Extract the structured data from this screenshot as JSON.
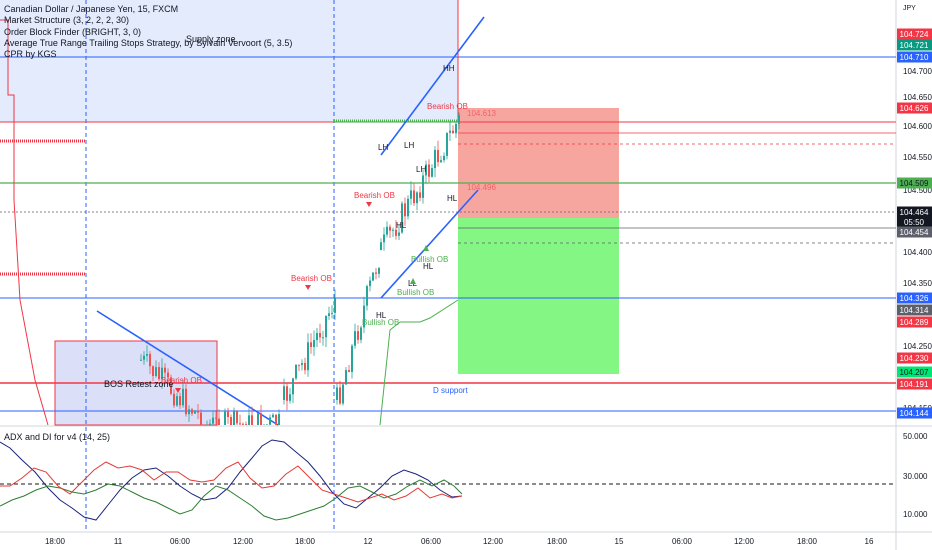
{
  "legend": {
    "symbol": "Canadian Dollar / Japanese Yen, 15, FXCM",
    "indicators": [
      "Market Structure (3, 2, 2, 2, 30)",
      "Order Block Finder (BRIGHT, 3, 0)",
      "Average True Range Trailing Stops Strategy, by Sylvain Vervoort (5, 3.5)",
      "CPR by KGS"
    ]
  },
  "currency": "JPY",
  "price_axis": {
    "ticks": [
      "104.700",
      "104.650",
      "104.600",
      "104.550",
      "104.500",
      "104.400",
      "104.350",
      "104.250",
      "104.150"
    ],
    "tags": [
      {
        "value": "104.724",
        "color": "#f23645",
        "text_color": "#ffffff",
        "kind": "fill"
      },
      {
        "value": "104.721",
        "color": "#089981",
        "text_color": "#ffffff",
        "kind": "fill"
      },
      {
        "value": "104.710",
        "color": "#2962ff",
        "text_color": "#ffffff",
        "kind": "fill"
      },
      {
        "value": "104.626",
        "color": "#f23645",
        "text_color": "#ffffff",
        "kind": "fill"
      },
      {
        "value": "104.509",
        "color": "#4caf50",
        "text_color": "#131722",
        "kind": "fill"
      },
      {
        "value": "104.464",
        "color": "#131722",
        "text_color": "#ffffff",
        "kind": "fill"
      },
      {
        "value": "05:50",
        "color": "#131722",
        "text_color": "#ffffff",
        "kind": "fill"
      },
      {
        "value": "104.454",
        "color": "#5d606b",
        "text_color": "#ffffff",
        "kind": "fill"
      },
      {
        "value": "104.326",
        "color": "#2962ff",
        "text_color": "#ffffff",
        "kind": "fill"
      },
      {
        "value": "104.314",
        "color": "#5d606b",
        "text_color": "#ffffff",
        "kind": "fill"
      },
      {
        "value": "104.289",
        "color": "#f23645",
        "text_color": "#ffffff",
        "kind": "fill"
      },
      {
        "value": "104.230",
        "color": "#f23645",
        "text_color": "#ffffff",
        "kind": "fill"
      },
      {
        "value": "104.207",
        "color": "#00e676",
        "text_color": "#131722",
        "kind": "fill"
      },
      {
        "value": "104.191",
        "color": "#f23645",
        "text_color": "#ffffff",
        "kind": "fill"
      },
      {
        "value": "104.144",
        "color": "#2962ff",
        "text_color": "#ffffff",
        "kind": "fill"
      }
    ]
  },
  "indicator_pane": {
    "title": "ADX and DI for v4 (14, 25)",
    "ticks": [
      "50.000",
      "30.000",
      "10.000"
    ],
    "series_colors": {
      "adx": "#1a237e",
      "di_plus": "#2e7d32",
      "di_minus": "#e53935",
      "threshold": "#131722"
    }
  },
  "time_axis": [
    "18:00",
    "11",
    "06:00",
    "12:00",
    "18:00",
    "12",
    "06:00",
    "12:00",
    "18:00",
    "15",
    "06:00",
    "12:00",
    "18:00",
    "16"
  ],
  "annotations": {
    "supply_zone": "Supply zone",
    "bos_retest": "BOS Retest zone",
    "d_support": "D support",
    "order_blocks": [
      "Bearish OB",
      "Bearish OB",
      "Bearish OB",
      "Bearish OB",
      "Bullish OB",
      "Bullish OB",
      "Bullish OB"
    ],
    "structure": [
      "HH",
      "LH",
      "LH",
      "LH",
      "HL",
      "HL",
      "HL",
      "HL",
      "LL"
    ],
    "position_labels": [
      "104.613",
      "104.496"
    ]
  },
  "colors": {
    "up_candle": "#26a69a",
    "down_candle": "#ef5350",
    "stop_zone": "#f4877f",
    "target_zone": "#7df57d",
    "supply_fill": "#dfe7fc",
    "bos_fill": "#d7dcf7",
    "trendline": "#2962ff",
    "resistance": "#f23645",
    "support_green": "#4caf50"
  }
}
